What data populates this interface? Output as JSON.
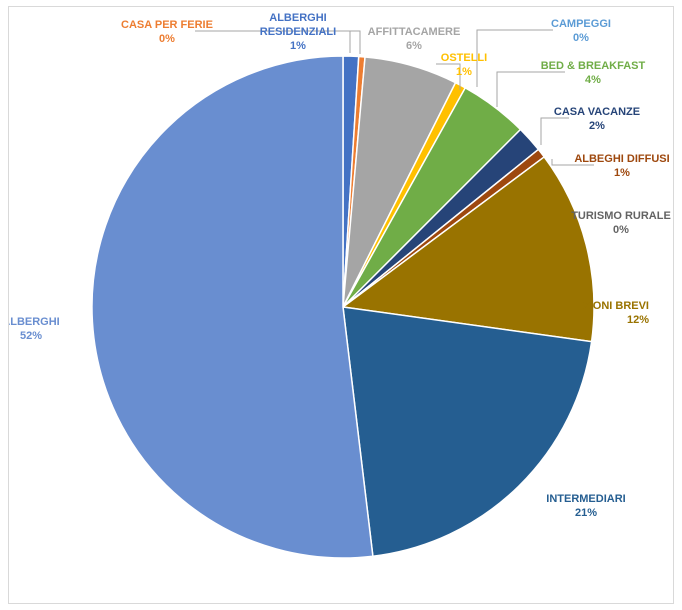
{
  "chart_data": {
    "type": "pie",
    "categories": [
      "ALBERGHI RESIDENZIALI",
      "CASA PER FERIE",
      "AFFITTACAMERE",
      "OSTELLI",
      "BED & BREAKFAST",
      "CASA VACANZE",
      "ALBEGHI DIFFUSI",
      "TURISMO RURALE",
      "LOCAZIONI BREVI",
      "INTERMEDIARI",
      "ALBERGHI",
      "CAMPEGGI"
    ],
    "labels": [
      "ALBERGHI RESIDENZIALI",
      "CASA PER FERIE",
      "AFFITTACAMERE",
      "OSTELLI",
      "BED & BREAKFAST",
      "CASA VACANZE",
      "ALBEGHI DIFFUSI",
      "TURISMO RURALE",
      "ZIONI BREVI",
      "INTERMEDIARI",
      "ALBERGHI",
      "CAMPEGGI"
    ],
    "percent_labels": [
      "1%",
      "0%",
      "6%",
      "1%",
      "4%",
      "2%",
      "1%",
      "0%",
      "12%",
      "21%",
      "52%",
      "0%"
    ],
    "values": [
      1.0,
      0.4,
      6.0,
      0.7,
      4.4,
      1.7,
      0.6,
      0.0,
      12.4,
      20.9,
      51.9,
      0.0
    ],
    "colors": [
      "#4472c4",
      "#ed7d31",
      "#a5a5a5",
      "#ffc000",
      "#70ad47",
      "#264478",
      "#9e480e",
      "#636363",
      "#997300",
      "#255e91",
      "#698ed0",
      "#5b9bd5"
    ],
    "label_colors": [
      "#4472c4",
      "#ed7d31",
      "#a5a5a5",
      "#ffc000",
      "#70ad47",
      "#264478",
      "#9e480e",
      "#636363",
      "#997300",
      "#255e91",
      "#698ed0",
      "#5b9bd5"
    ],
    "start_angle_deg": 0,
    "direction": "clockwise"
  }
}
